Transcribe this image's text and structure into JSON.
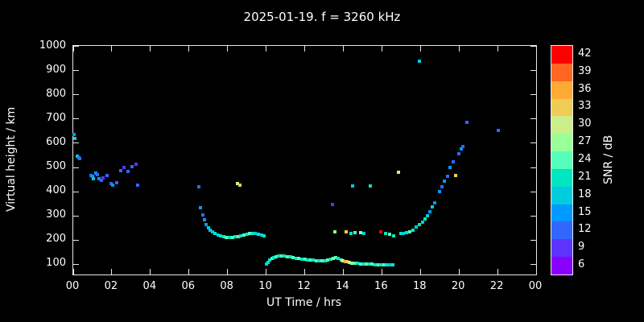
{
  "title": "2025-01-19. f = 3260 kHz",
  "chart_data": {
    "type": "scatter",
    "title": "2025-01-19. f = 3260 kHz",
    "xlabel": "UT Time / hrs",
    "ylabel": "Virtual height / km",
    "colorbar_label": "SNR / dB",
    "xlim": [
      0,
      24
    ],
    "x_tick_values": [
      0,
      2,
      4,
      6,
      8,
      10,
      12,
      14,
      16,
      18,
      20,
      22,
      24
    ],
    "x_tick_labels": [
      "00",
      "02",
      "04",
      "06",
      "08",
      "10",
      "12",
      "14",
      "16",
      "18",
      "20",
      "22",
      "00"
    ],
    "y_tick_values": [
      100,
      200,
      300,
      400,
      500,
      600,
      700,
      800,
      900,
      1000
    ],
    "y_axis_range_km": [
      57,
      1003
    ],
    "grid": false,
    "background": "#000000",
    "colorbar": {
      "values": [
        6,
        9,
        12,
        15,
        18,
        21,
        24,
        27,
        30,
        33,
        36,
        39,
        42
      ],
      "colors": [
        "#8a00ff",
        "#5c33ff",
        "#3366ff",
        "#0099ff",
        "#00ccdd",
        "#00e6c3",
        "#55ffbb",
        "#99ff99",
        "#ccee88",
        "#eecc55",
        "#ffaa33",
        "#ff6622",
        "#ff0000"
      ]
    },
    "points": [
      [
        0.05,
        635,
        15
      ],
      [
        0.1,
        620,
        18
      ],
      [
        0.2,
        545,
        18
      ],
      [
        0.3,
        540,
        15
      ],
      [
        0.35,
        535,
        12
      ],
      [
        0.9,
        468,
        12
      ],
      [
        1.0,
        462,
        15
      ],
      [
        1.05,
        455,
        18
      ],
      [
        1.15,
        478,
        15
      ],
      [
        1.25,
        470,
        12
      ],
      [
        1.35,
        452,
        15
      ],
      [
        1.45,
        446,
        12
      ],
      [
        1.55,
        458,
        9
      ],
      [
        1.75,
        468,
        12
      ],
      [
        1.95,
        432,
        12
      ],
      [
        2.05,
        426,
        15
      ],
      [
        2.25,
        438,
        12
      ],
      [
        2.45,
        486,
        12
      ],
      [
        2.65,
        500,
        9
      ],
      [
        2.85,
        482,
        12
      ],
      [
        3.05,
        504,
        12
      ],
      [
        3.25,
        512,
        9
      ],
      [
        3.35,
        428,
        12
      ],
      [
        6.5,
        420,
        12
      ],
      [
        6.6,
        332,
        15
      ],
      [
        6.7,
        305,
        12
      ],
      [
        6.8,
        282,
        15
      ],
      [
        6.9,
        262,
        15
      ],
      [
        7.0,
        250,
        18
      ],
      [
        7.1,
        240,
        18
      ],
      [
        7.2,
        232,
        18
      ],
      [
        7.35,
        226,
        21
      ],
      [
        7.5,
        220,
        18
      ],
      [
        7.65,
        216,
        21
      ],
      [
        7.8,
        212,
        21
      ],
      [
        7.95,
        210,
        24
      ],
      [
        8.1,
        210,
        21
      ],
      [
        8.25,
        211,
        24
      ],
      [
        8.4,
        213,
        21
      ],
      [
        8.5,
        432,
        30
      ],
      [
        8.62,
        428,
        33
      ],
      [
        8.55,
        215,
        24
      ],
      [
        8.7,
        217,
        21
      ],
      [
        8.85,
        220,
        24
      ],
      [
        9.0,
        223,
        21
      ],
      [
        9.15,
        226,
        24
      ],
      [
        9.3,
        228,
        21
      ],
      [
        9.45,
        226,
        18
      ],
      [
        9.6,
        223,
        21
      ],
      [
        9.75,
        220,
        18
      ],
      [
        9.9,
        218,
        21
      ],
      [
        10.0,
        100,
        18
      ],
      [
        10.1,
        108,
        21
      ],
      [
        10.2,
        116,
        21
      ],
      [
        10.3,
        122,
        24
      ],
      [
        10.4,
        127,
        21
      ],
      [
        10.5,
        131,
        24
      ],
      [
        10.65,
        133,
        21
      ],
      [
        10.8,
        134,
        24
      ],
      [
        10.95,
        133,
        21
      ],
      [
        11.1,
        131,
        24
      ],
      [
        11.25,
        129,
        21
      ],
      [
        11.4,
        127,
        24
      ],
      [
        11.55,
        124,
        21
      ],
      [
        11.7,
        122,
        24
      ],
      [
        11.85,
        121,
        21
      ],
      [
        12.0,
        120,
        24
      ],
      [
        12.15,
        118,
        21
      ],
      [
        12.3,
        117,
        24
      ],
      [
        12.45,
        116,
        21
      ],
      [
        12.6,
        115,
        24
      ],
      [
        12.75,
        114,
        21
      ],
      [
        12.9,
        114,
        24
      ],
      [
        13.05,
        115,
        21
      ],
      [
        13.2,
        118,
        24
      ],
      [
        13.35,
        121,
        21
      ],
      [
        13.5,
        125,
        27
      ],
      [
        13.62,
        127,
        24
      ],
      [
        13.75,
        123,
        21
      ],
      [
        13.88,
        118,
        24
      ],
      [
        14.0,
        114,
        30
      ],
      [
        14.1,
        111,
        36
      ],
      [
        14.2,
        109,
        33
      ],
      [
        14.32,
        107,
        30
      ],
      [
        14.45,
        105,
        27
      ],
      [
        14.6,
        103,
        24
      ],
      [
        14.75,
        102,
        21
      ],
      [
        14.9,
        101,
        24
      ],
      [
        15.05,
        100,
        21
      ],
      [
        15.2,
        100,
        24
      ],
      [
        15.35,
        99,
        21
      ],
      [
        15.5,
        99,
        24
      ],
      [
        15.65,
        98,
        21
      ],
      [
        15.8,
        98,
        24
      ],
      [
        15.95,
        97,
        21
      ],
      [
        16.1,
        97,
        24
      ],
      [
        16.25,
        96,
        21
      ],
      [
        16.4,
        96,
        18
      ],
      [
        16.55,
        96,
        21
      ],
      [
        13.45,
        348,
        9
      ],
      [
        13.58,
        232,
        27
      ],
      [
        14.15,
        232,
        33
      ],
      [
        14.4,
        228,
        21
      ],
      [
        14.62,
        230,
        24
      ],
      [
        14.9,
        231,
        27
      ],
      [
        15.05,
        228,
        18
      ],
      [
        14.5,
        422,
        18
      ],
      [
        15.42,
        424,
        21
      ],
      [
        15.95,
        232,
        42
      ],
      [
        16.2,
        228,
        21
      ],
      [
        16.42,
        222,
        24
      ],
      [
        16.6,
        216,
        21
      ],
      [
        16.85,
        480,
        30
      ],
      [
        17.0,
        226,
        21
      ],
      [
        17.12,
        228,
        18
      ],
      [
        17.3,
        230,
        21
      ],
      [
        17.45,
        232,
        24
      ],
      [
        17.6,
        240,
        21
      ],
      [
        17.78,
        252,
        18
      ],
      [
        17.95,
        940,
        18
      ],
      [
        17.95,
        263,
        21
      ],
      [
        18.1,
        272,
        18
      ],
      [
        18.22,
        286,
        21
      ],
      [
        18.35,
        300,
        18
      ],
      [
        18.5,
        318,
        15
      ],
      [
        18.62,
        336,
        18
      ],
      [
        18.75,
        352,
        15
      ],
      [
        19.0,
        400,
        15
      ],
      [
        19.1,
        420,
        12
      ],
      [
        19.25,
        442,
        15
      ],
      [
        19.4,
        465,
        12
      ],
      [
        19.55,
        500,
        15
      ],
      [
        19.7,
        522,
        12
      ],
      [
        19.82,
        466,
        33
      ],
      [
        20.0,
        556,
        12
      ],
      [
        20.1,
        576,
        15
      ],
      [
        20.2,
        588,
        12
      ],
      [
        20.4,
        685,
        12
      ],
      [
        22.05,
        652,
        12
      ]
    ]
  }
}
